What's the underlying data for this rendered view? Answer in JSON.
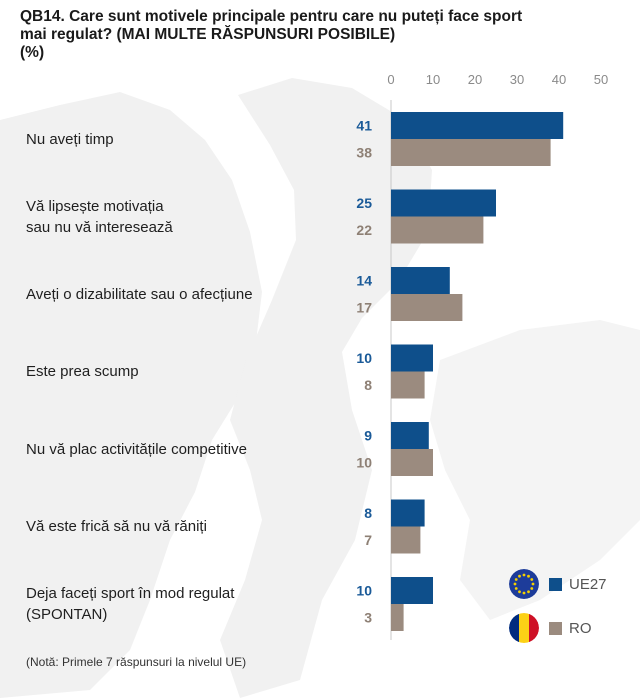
{
  "title_lines": [
    "QB14. Care sunt motivele principale pentru care nu puteți face sport",
    "mai regulat? (MAI MULTE RĂSPUNSURI POSIBILE)",
    "(%)"
  ],
  "note": "(Notă: Primele 7 răspunsuri la nivelul UE)",
  "legend": {
    "series1": "UE27",
    "series2": "RO",
    "series1_icon": "eu-flag-icon",
    "series2_icon": "romania-flag-icon"
  },
  "colors": {
    "ue27": "#0e4f8b",
    "ro": "#9b8b7f",
    "ue27_label": "#1a5a98",
    "ro_label": "#8e8075"
  },
  "chart_data": {
    "type": "bar",
    "orientation": "horizontal",
    "categories": [
      "Nu aveți timp",
      "Vă lipsește motivația\nsau nu vă interesează",
      "Aveți o dizabilitate sau o afecțiune",
      "Este prea scump",
      "Nu vă plac activitățile competitive",
      "Vă este frică să nu vă răniți",
      "Deja faceți sport în mod regulat\n(SPONTAN)"
    ],
    "series": [
      {
        "name": "UE27",
        "values": [
          41,
          25,
          14,
          10,
          9,
          8,
          10
        ]
      },
      {
        "name": "RO",
        "values": [
          38,
          22,
          17,
          8,
          10,
          7,
          3
        ]
      }
    ],
    "x_ticks": [
      0,
      10,
      20,
      30,
      40,
      50
    ],
    "xlim": [
      0,
      50
    ],
    "grid": false,
    "legend_position": "bottom-right"
  }
}
